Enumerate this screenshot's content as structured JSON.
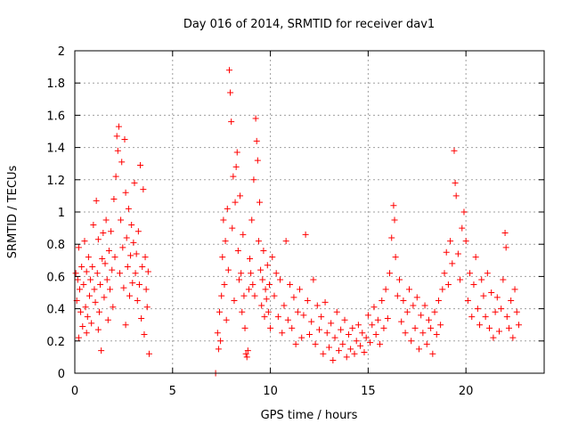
{
  "chart_data": {
    "type": "scatter",
    "title": "Day 016 of 2014, SRMTID for receiver dav1",
    "xlabel": "GPS time / hours",
    "ylabel": "SRMTID / TECUs",
    "xlim": [
      0,
      24
    ],
    "ylim": [
      0,
      2
    ],
    "x_ticks": [
      0,
      5,
      10,
      15,
      20
    ],
    "x_tick_labels": [
      "0",
      "5",
      "10",
      "15",
      "20"
    ],
    "y_ticks": [
      0,
      0.2,
      0.4,
      0.6,
      0.8,
      1,
      1.2,
      1.4,
      1.6,
      1.8,
      2
    ],
    "y_tick_labels": [
      "0",
      "0.2",
      "0.4",
      "0.6",
      "0.8",
      "1",
      "1.2",
      "1.4",
      "1.6",
      "1.8",
      "2"
    ],
    "grid": true,
    "marker": "+",
    "color": "#ff0000",
    "series": [
      {
        "name": "dav1",
        "points": [
          [
            0.05,
            0.62
          ],
          [
            0.1,
            0.45
          ],
          [
            0.15,
            0.58
          ],
          [
            0.2,
            0.78
          ],
          [
            0.25,
            0.52
          ],
          [
            0.3,
            0.38
          ],
          [
            0.35,
            0.66
          ],
          [
            0.4,
            0.29
          ],
          [
            0.45,
            0.55
          ],
          [
            0.5,
            0.82
          ],
          [
            0.55,
            0.41
          ],
          [
            0.6,
            0.63
          ],
          [
            0.65,
            0.35
          ],
          [
            0.7,
            0.72
          ],
          [
            0.75,
            0.48
          ],
          [
            0.8,
            0.58
          ],
          [
            0.85,
            0.31
          ],
          [
            0.9,
            0.66
          ],
          [
            0.95,
            0.92
          ],
          [
            1.0,
            0.52
          ],
          [
            1.05,
            0.44
          ],
          [
            1.1,
            1.07
          ],
          [
            1.15,
            0.62
          ],
          [
            1.2,
            0.83
          ],
          [
            1.25,
            0.38
          ],
          [
            1.3,
            0.55
          ],
          [
            1.35,
            0.14
          ],
          [
            1.4,
            0.71
          ],
          [
            1.45,
            0.87
          ],
          [
            1.5,
            0.47
          ],
          [
            1.55,
            0.68
          ],
          [
            1.6,
            0.95
          ],
          [
            1.65,
            0.58
          ],
          [
            1.7,
            0.33
          ],
          [
            1.75,
            0.76
          ],
          [
            1.8,
            0.52
          ],
          [
            1.85,
            0.88
          ],
          [
            1.9,
            0.64
          ],
          [
            1.95,
            0.41
          ],
          [
            2.0,
            1.08
          ],
          [
            2.05,
            0.72
          ],
          [
            2.1,
            1.22
          ],
          [
            2.15,
            1.47
          ],
          [
            2.2,
            1.38
          ],
          [
            2.25,
            1.53
          ],
          [
            2.3,
            0.62
          ],
          [
            2.35,
            0.95
          ],
          [
            2.4,
            1.31
          ],
          [
            2.45,
            0.78
          ],
          [
            2.5,
            0.53
          ],
          [
            2.55,
            1.45
          ],
          [
            2.6,
            1.12
          ],
          [
            2.65,
            0.84
          ],
          [
            2.7,
            0.66
          ],
          [
            2.75,
            1.02
          ],
          [
            2.8,
            0.48
          ],
          [
            2.85,
            0.73
          ],
          [
            2.9,
            0.92
          ],
          [
            2.95,
            0.56
          ],
          [
            3.0,
            0.81
          ],
          [
            3.05,
            1.18
          ],
          [
            3.1,
            0.62
          ],
          [
            3.15,
            0.74
          ],
          [
            3.2,
            0.45
          ],
          [
            3.25,
            0.88
          ],
          [
            3.3,
            0.55
          ],
          [
            3.35,
            1.29
          ],
          [
            3.4,
            0.34
          ],
          [
            3.45,
            0.66
          ],
          [
            3.5,
            1.14
          ],
          [
            3.55,
            0.24
          ],
          [
            3.6,
            0.72
          ],
          [
            3.65,
            0.52
          ],
          [
            3.7,
            0.41
          ],
          [
            3.75,
            0.63
          ],
          [
            3.8,
            0.12
          ],
          [
            0.2,
            0.22
          ],
          [
            0.6,
            0.25
          ],
          [
            1.2,
            0.27
          ],
          [
            2.6,
            0.3
          ],
          [
            7.2,
            0.0
          ],
          [
            7.3,
            0.25
          ],
          [
            7.35,
            0.15
          ],
          [
            7.4,
            0.38
          ],
          [
            7.45,
            0.2
          ],
          [
            7.5,
            0.48
          ],
          [
            7.55,
            0.72
          ],
          [
            7.6,
            0.95
          ],
          [
            7.65,
            0.55
          ],
          [
            7.7,
            0.82
          ],
          [
            7.75,
            0.33
          ],
          [
            7.8,
            1.02
          ],
          [
            7.85,
            0.64
          ],
          [
            7.9,
            1.88
          ],
          [
            7.95,
            1.74
          ],
          [
            8.0,
            1.56
          ],
          [
            8.05,
            0.9
          ],
          [
            8.1,
            1.22
          ],
          [
            8.15,
            0.45
          ],
          [
            8.2,
            1.06
          ],
          [
            8.25,
            1.28
          ],
          [
            8.3,
            1.37
          ],
          [
            8.35,
            0.76
          ],
          [
            8.4,
            0.58
          ],
          [
            8.45,
            1.1
          ],
          [
            8.5,
            0.62
          ],
          [
            8.55,
            0.38
          ],
          [
            8.6,
            0.86
          ],
          [
            8.65,
            0.48
          ],
          [
            8.7,
            0.28
          ],
          [
            8.75,
            0.12
          ],
          [
            8.8,
            0.1
          ],
          [
            8.85,
            0.14
          ],
          [
            8.9,
            0.52
          ],
          [
            8.95,
            0.71
          ],
          [
            9.0,
            0.62
          ],
          [
            9.05,
            0.95
          ],
          [
            9.1,
            0.55
          ],
          [
            9.15,
            1.2
          ],
          [
            9.2,
            0.48
          ],
          [
            9.25,
            1.58
          ],
          [
            9.3,
            1.44
          ],
          [
            9.35,
            1.32
          ],
          [
            9.4,
            0.82
          ],
          [
            9.45,
            1.06
          ],
          [
            9.5,
            0.64
          ],
          [
            9.55,
            0.42
          ],
          [
            9.6,
            0.58
          ],
          [
            9.65,
            0.76
          ],
          [
            9.7,
            0.35
          ],
          [
            9.75,
            0.52
          ],
          [
            9.8,
            0.46
          ],
          [
            9.85,
            0.67
          ],
          [
            9.9,
            0.38
          ],
          [
            9.95,
            0.55
          ],
          [
            10.0,
            0.28
          ],
          [
            10.1,
            0.72
          ],
          [
            10.2,
            0.48
          ],
          [
            10.3,
            0.62
          ],
          [
            10.4,
            0.35
          ],
          [
            10.5,
            0.58
          ],
          [
            10.6,
            0.25
          ],
          [
            10.7,
            0.42
          ],
          [
            10.8,
            0.82
          ],
          [
            10.9,
            0.33
          ],
          [
            11.0,
            0.55
          ],
          [
            11.1,
            0.28
          ],
          [
            11.2,
            0.47
          ],
          [
            11.3,
            0.18
          ],
          [
            11.4,
            0.38
          ],
          [
            11.5,
            0.52
          ],
          [
            11.6,
            0.22
          ],
          [
            11.7,
            0.36
          ],
          [
            11.8,
            0.86
          ],
          [
            11.9,
            0.45
          ],
          [
            12.0,
            0.24
          ],
          [
            12.1,
            0.32
          ],
          [
            12.2,
            0.58
          ],
          [
            12.3,
            0.18
          ],
          [
            12.4,
            0.42
          ],
          [
            12.5,
            0.27
          ],
          [
            12.6,
            0.35
          ],
          [
            12.7,
            0.12
          ],
          [
            12.8,
            0.44
          ],
          [
            12.9,
            0.25
          ],
          [
            13.0,
            0.16
          ],
          [
            13.1,
            0.31
          ],
          [
            13.2,
            0.08
          ],
          [
            13.3,
            0.22
          ],
          [
            13.4,
            0.38
          ],
          [
            13.5,
            0.14
          ],
          [
            13.6,
            0.27
          ],
          [
            13.7,
            0.18
          ],
          [
            13.8,
            0.33
          ],
          [
            13.9,
            0.1
          ],
          [
            14.0,
            0.24
          ],
          [
            14.1,
            0.15
          ],
          [
            14.2,
            0.28
          ],
          [
            14.3,
            0.12
          ],
          [
            14.4,
            0.2
          ],
          [
            14.5,
            0.3
          ],
          [
            14.6,
            0.17
          ],
          [
            14.7,
            0.25
          ],
          [
            14.8,
            0.13
          ],
          [
            14.9,
            0.22
          ],
          [
            15.0,
            0.36
          ],
          [
            15.1,
            0.19
          ],
          [
            15.2,
            0.3
          ],
          [
            15.3,
            0.41
          ],
          [
            15.4,
            0.24
          ],
          [
            15.5,
            0.33
          ],
          [
            15.6,
            0.18
          ],
          [
            15.7,
            0.45
          ],
          [
            15.8,
            0.28
          ],
          [
            15.9,
            0.52
          ],
          [
            16.0,
            0.34
          ],
          [
            16.1,
            0.62
          ],
          [
            16.2,
            0.84
          ],
          [
            16.3,
            1.04
          ],
          [
            16.35,
            0.95
          ],
          [
            16.4,
            0.72
          ],
          [
            16.5,
            0.48
          ],
          [
            16.6,
            0.58
          ],
          [
            16.7,
            0.32
          ],
          [
            16.8,
            0.45
          ],
          [
            16.9,
            0.25
          ],
          [
            17.0,
            0.38
          ],
          [
            17.1,
            0.52
          ],
          [
            17.2,
            0.2
          ],
          [
            17.3,
            0.42
          ],
          [
            17.4,
            0.28
          ],
          [
            17.5,
            0.47
          ],
          [
            17.6,
            0.15
          ],
          [
            17.7,
            0.36
          ],
          [
            17.8,
            0.25
          ],
          [
            17.9,
            0.42
          ],
          [
            18.0,
            0.18
          ],
          [
            18.1,
            0.33
          ],
          [
            18.2,
            0.28
          ],
          [
            18.3,
            0.12
          ],
          [
            18.4,
            0.38
          ],
          [
            18.5,
            0.24
          ],
          [
            18.6,
            0.45
          ],
          [
            18.7,
            0.3
          ],
          [
            18.8,
            0.52
          ],
          [
            18.9,
            0.62
          ],
          [
            19.0,
            0.75
          ],
          [
            19.1,
            0.55
          ],
          [
            19.2,
            0.82
          ],
          [
            19.3,
            0.68
          ],
          [
            19.4,
            1.38
          ],
          [
            19.45,
            1.18
          ],
          [
            19.5,
            1.1
          ],
          [
            19.6,
            0.74
          ],
          [
            19.7,
            0.58
          ],
          [
            19.8,
            0.9
          ],
          [
            19.9,
            1.0
          ],
          [
            20.0,
            0.82
          ],
          [
            20.1,
            0.45
          ],
          [
            20.2,
            0.62
          ],
          [
            20.3,
            0.35
          ],
          [
            20.4,
            0.55
          ],
          [
            20.5,
            0.72
          ],
          [
            20.6,
            0.4
          ],
          [
            20.7,
            0.3
          ],
          [
            20.8,
            0.58
          ],
          [
            20.9,
            0.48
          ],
          [
            21.0,
            0.35
          ],
          [
            21.1,
            0.62
          ],
          [
            21.2,
            0.28
          ],
          [
            21.3,
            0.5
          ],
          [
            21.4,
            0.22
          ],
          [
            21.5,
            0.38
          ],
          [
            21.6,
            0.47
          ],
          [
            21.7,
            0.26
          ],
          [
            21.8,
            0.4
          ],
          [
            21.9,
            0.58
          ],
          [
            22.0,
            0.87
          ],
          [
            22.05,
            0.78
          ],
          [
            22.1,
            0.35
          ],
          [
            22.2,
            0.28
          ],
          [
            22.3,
            0.45
          ],
          [
            22.4,
            0.22
          ],
          [
            22.5,
            0.52
          ],
          [
            22.6,
            0.38
          ],
          [
            22.7,
            0.3
          ]
        ]
      }
    ]
  }
}
